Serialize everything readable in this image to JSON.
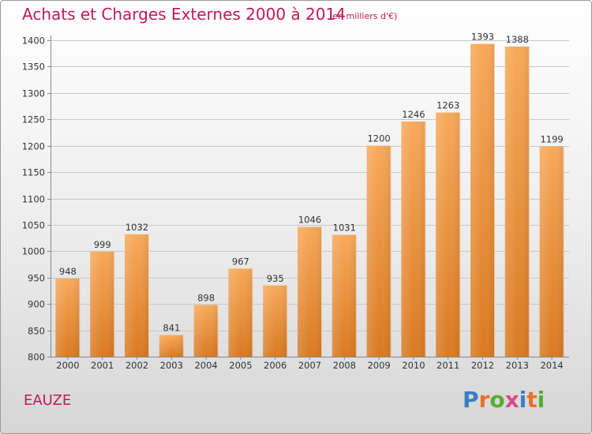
{
  "header": {
    "title": "Achats et Charges Externes 2000 à 2014",
    "subtitle": "(en milliers d'€)"
  },
  "footer": {
    "commune": "EAUZE",
    "logo_text": "Proxiti"
  },
  "colors": {
    "title": "#c2185b",
    "bar_light": "#f7a95a",
    "bar_dark": "#d97a22",
    "logo_letters": [
      "#3a7fc4",
      "#e8702a",
      "#5aaa35",
      "#d84a8c",
      "#3a7fc4",
      "#e8702a",
      "#5aaa35"
    ]
  },
  "chart_data": {
    "type": "bar",
    "categories": [
      "2000",
      "2001",
      "2002",
      "2003",
      "2004",
      "2005",
      "2006",
      "2007",
      "2008",
      "2009",
      "2010",
      "2011",
      "2012",
      "2013",
      "2014"
    ],
    "values": [
      948,
      999,
      1032,
      841,
      898,
      967,
      935,
      1046,
      1031,
      1200,
      1246,
      1263,
      1393,
      1388,
      1199
    ],
    "title": "Achats et Charges Externes 2000 à 2014",
    "ylim": [
      800,
      1400
    ],
    "yticks": [
      800,
      850,
      900,
      950,
      1000,
      1050,
      1100,
      1150,
      1200,
      1250,
      1300,
      1350,
      1400
    ],
    "grid": true,
    "data_labels": true
  }
}
